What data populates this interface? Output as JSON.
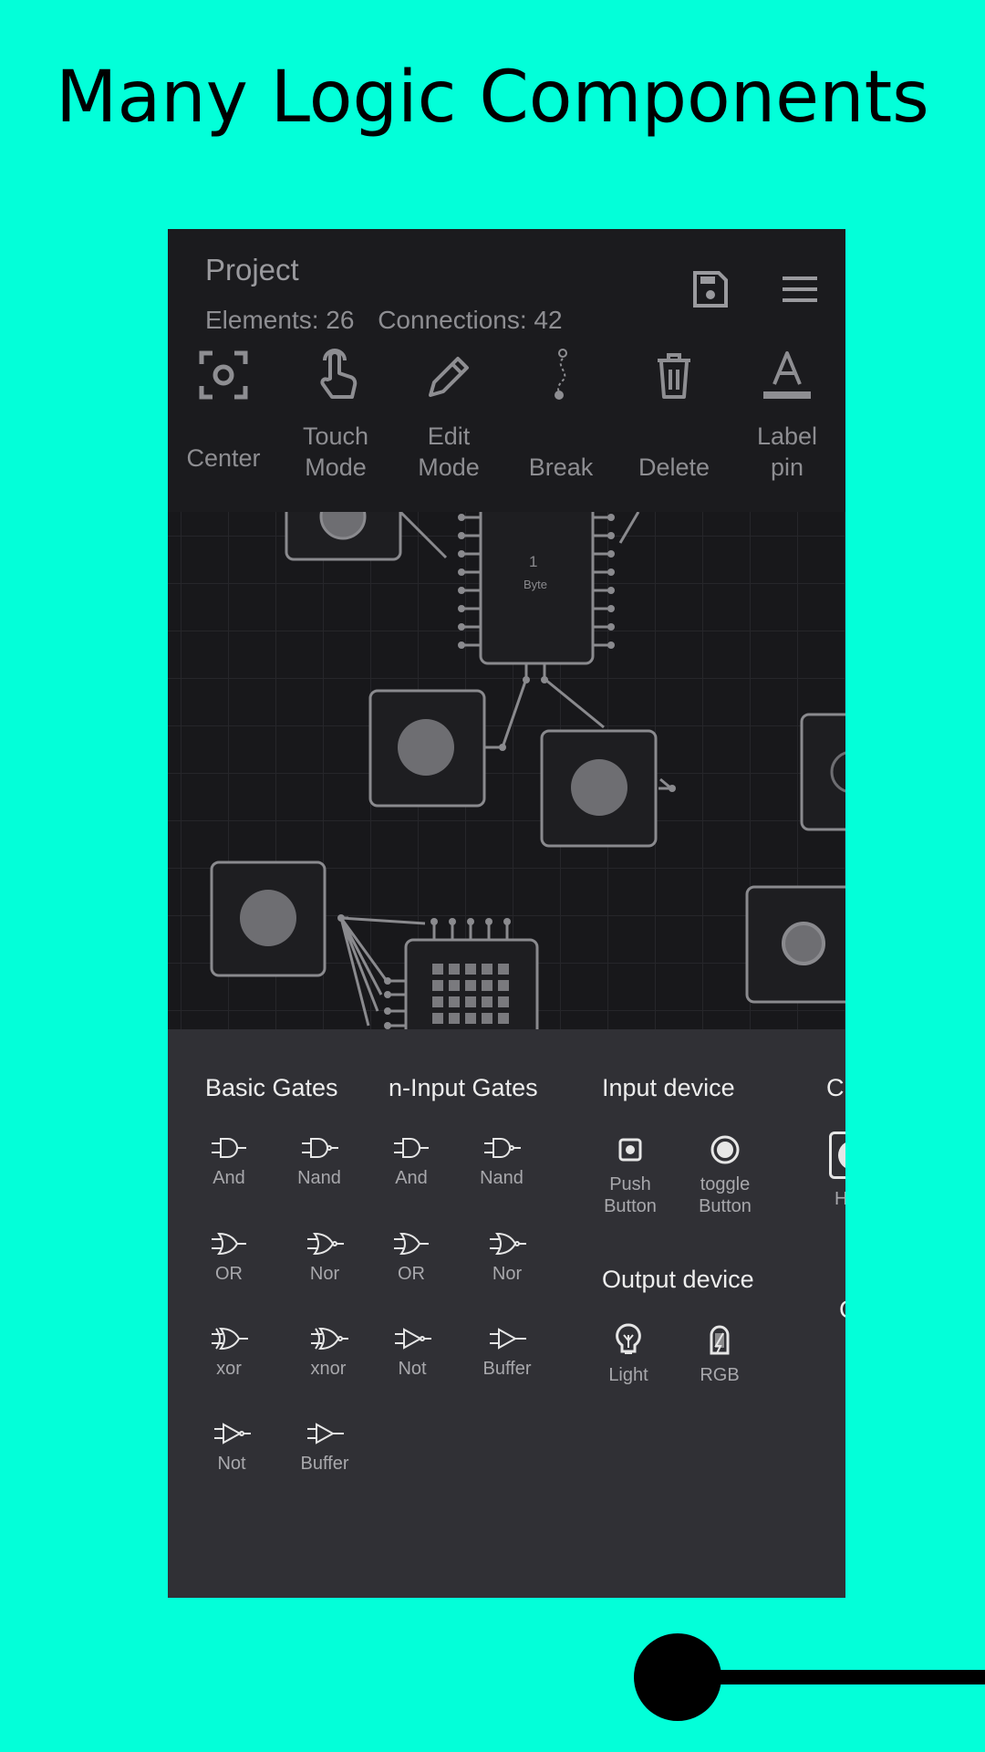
{
  "headline": "Many Logic Components",
  "header": {
    "project_title": "Project",
    "elements": "Elements: 26",
    "connections": "Connections: 42",
    "save_icon": "save-icon",
    "menu_icon": "menu-icon"
  },
  "toolbar": [
    {
      "label": "Center",
      "icon": "center-focus-icon"
    },
    {
      "label": "Touch\nMode",
      "icon": "touch-hand-icon"
    },
    {
      "label": "Edit\nMode",
      "icon": "pencil-icon"
    },
    {
      "label": "Break",
      "icon": "break-wire-icon"
    },
    {
      "label": "Delete",
      "icon": "trash-icon"
    },
    {
      "label": "Label\npin",
      "icon": "text-label-icon"
    }
  ],
  "canvas": {
    "byte_value": "1",
    "byte_label": "Byte"
  },
  "palette": {
    "basic_gates": {
      "title": "Basic Gates",
      "items": [
        "And",
        "Nand",
        "OR",
        "Nor",
        "xor",
        "xnor",
        "Not",
        "Buffer"
      ]
    },
    "n_input_gates": {
      "title": "n-Input Gates",
      "items": [
        "And",
        "Nand",
        "OR",
        "Nor",
        "Not",
        "Buffer"
      ]
    },
    "input_device": {
      "title": "Input device",
      "items": [
        "Push\nButton",
        "toggle\nButton"
      ]
    },
    "output_device": {
      "title": "Output device",
      "items": [
        "Light",
        "RGB"
      ]
    },
    "partial_title": "C",
    "partial_item": "H",
    "partial_text": "C"
  },
  "colors": {
    "background": "#03FFD9",
    "app_bg": "#18181B",
    "panel_bg": "#303035",
    "muted_text": "#8E8E92"
  }
}
